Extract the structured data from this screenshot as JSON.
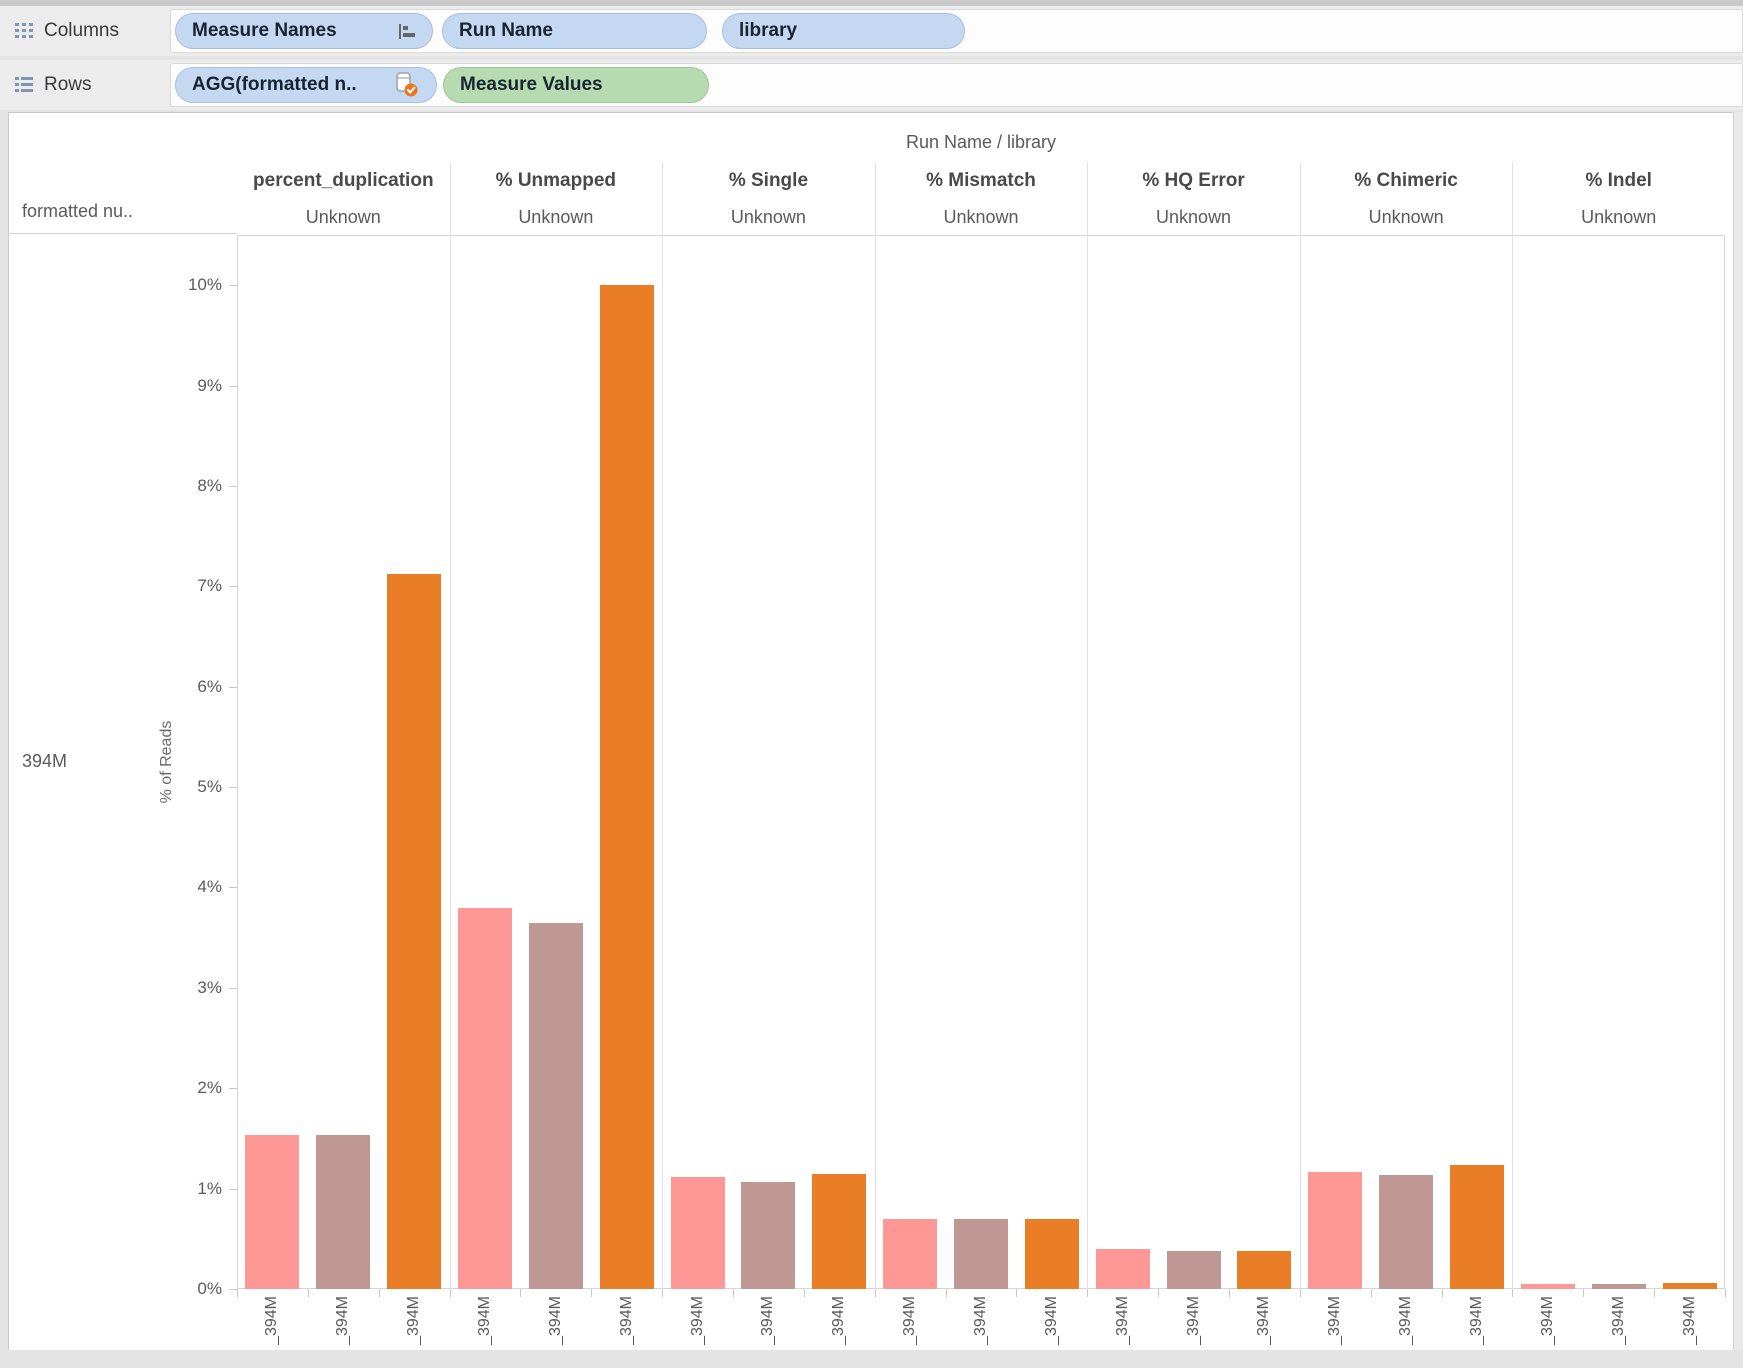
{
  "shelves": {
    "columns": {
      "label": "Columns",
      "pills": [
        {
          "label": "Measure Names",
          "icon": "sort-ascending-icon"
        },
        {
          "label": "Run Name"
        },
        {
          "label": "library"
        }
      ]
    },
    "rows": {
      "label": "Rows",
      "pills": [
        {
          "label": "AGG(formatted n..",
          "icon": "table-calc-check-icon"
        },
        {
          "label": "Measure Values"
        }
      ]
    }
  },
  "colors": {
    "pill_blue": "#C4D8F1",
    "pill_green": "#B7DBB1",
    "bar_pink": "#FD9897",
    "bar_mauve": "#C09893",
    "bar_orange": "#E97E26"
  },
  "chart": {
    "title": "Run Name / library",
    "row_field_header": "formatted nu..",
    "row_label": "394M",
    "y_axis_label": "% of Reads",
    "facet_sub_label": "Unknown",
    "x_tick_label": "_394M"
  },
  "chart_data": {
    "type": "bar",
    "title": "Run Name / library",
    "ylabel": "% of Reads",
    "ylim": [
      0,
      10.5
    ],
    "grid": "off",
    "legend": "none",
    "y_ticks": [
      "0%",
      "1%",
      "2%",
      "3%",
      "4%",
      "5%",
      "6%",
      "7%",
      "8%",
      "9%",
      "10%"
    ],
    "row_label": "394M",
    "x_labels": [
      "_394M",
      "_394M",
      "_394M"
    ],
    "series_colors": [
      "#FD9897",
      "#C09893",
      "#E97E26"
    ],
    "facets": [
      {
        "name": "percent_duplication",
        "sub": "Unknown",
        "values": [
          1.53,
          1.53,
          7.12
        ]
      },
      {
        "name": "% Unmapped",
        "sub": "Unknown",
        "values": [
          3.8,
          3.65,
          10.0
        ]
      },
      {
        "name": "% Single",
        "sub": "Unknown",
        "values": [
          1.12,
          1.07,
          1.15
        ]
      },
      {
        "name": "% Mismatch",
        "sub": "Unknown",
        "values": [
          0.7,
          0.7,
          0.7
        ]
      },
      {
        "name": "% HQ Error",
        "sub": "Unknown",
        "values": [
          0.4,
          0.38,
          0.38
        ]
      },
      {
        "name": "% Chimeric",
        "sub": "Unknown",
        "values": [
          1.17,
          1.14,
          1.24
        ]
      },
      {
        "name": "% Indel",
        "sub": "Unknown",
        "values": [
          0.05,
          0.05,
          0.06
        ]
      }
    ]
  }
}
